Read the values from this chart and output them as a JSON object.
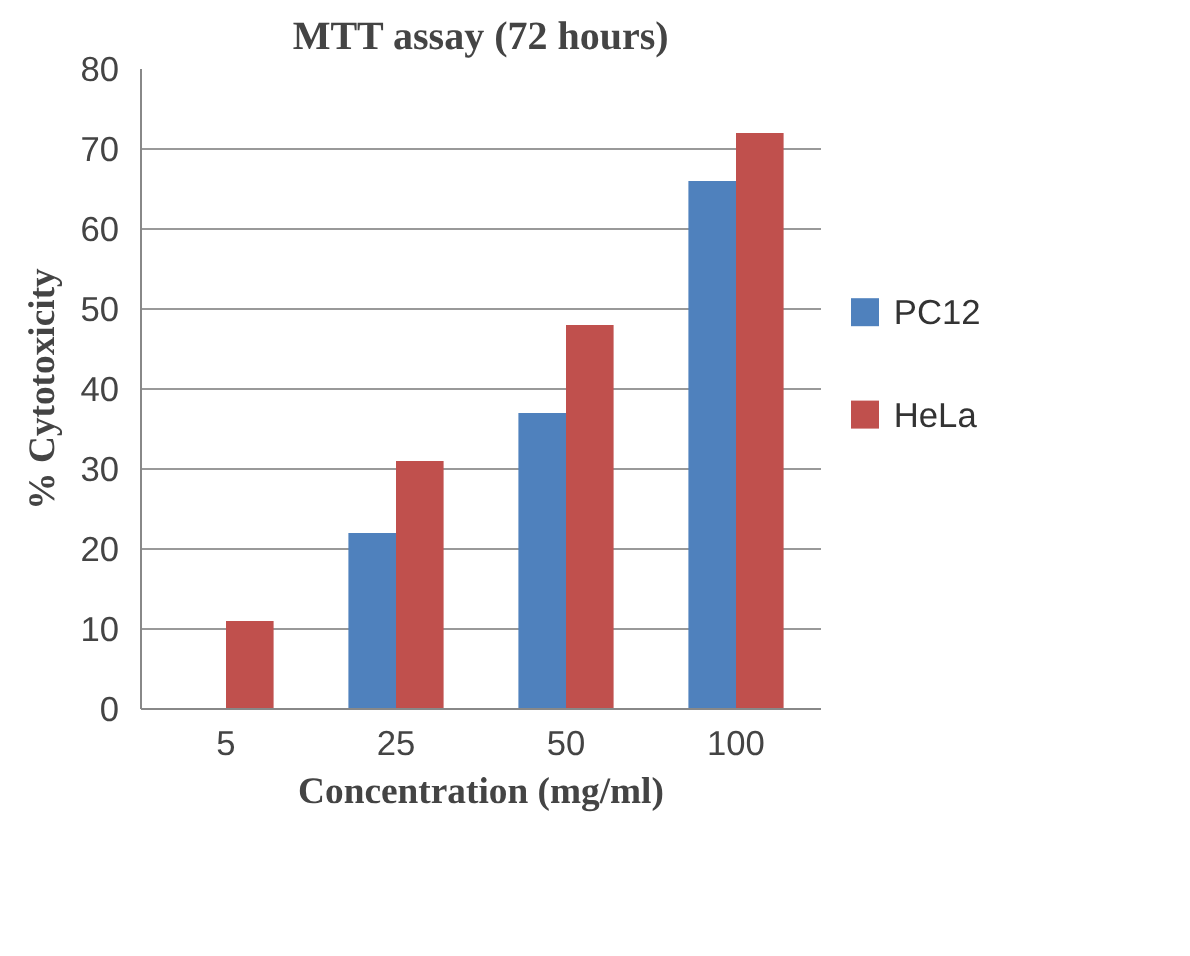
{
  "chart_data": {
    "type": "bar",
    "title": "MTT assay (72 hours)",
    "xlabel": "Concentration (mg/ml)",
    "ylabel": "% Cytotoxicity",
    "categories": [
      "5",
      "25",
      "50",
      "100"
    ],
    "series": [
      {
        "name": "PC12",
        "color": "#4f81bd",
        "values": [
          0,
          22,
          37,
          66
        ]
      },
      {
        "name": "HeLa",
        "color": "#c0504d",
        "values": [
          11,
          31,
          48,
          72
        ]
      }
    ],
    "ylim": [
      0,
      80
    ],
    "yticks": [
      0,
      10,
      20,
      30,
      40,
      50,
      60,
      70,
      80
    ],
    "grid": "y",
    "legend": "right"
  }
}
